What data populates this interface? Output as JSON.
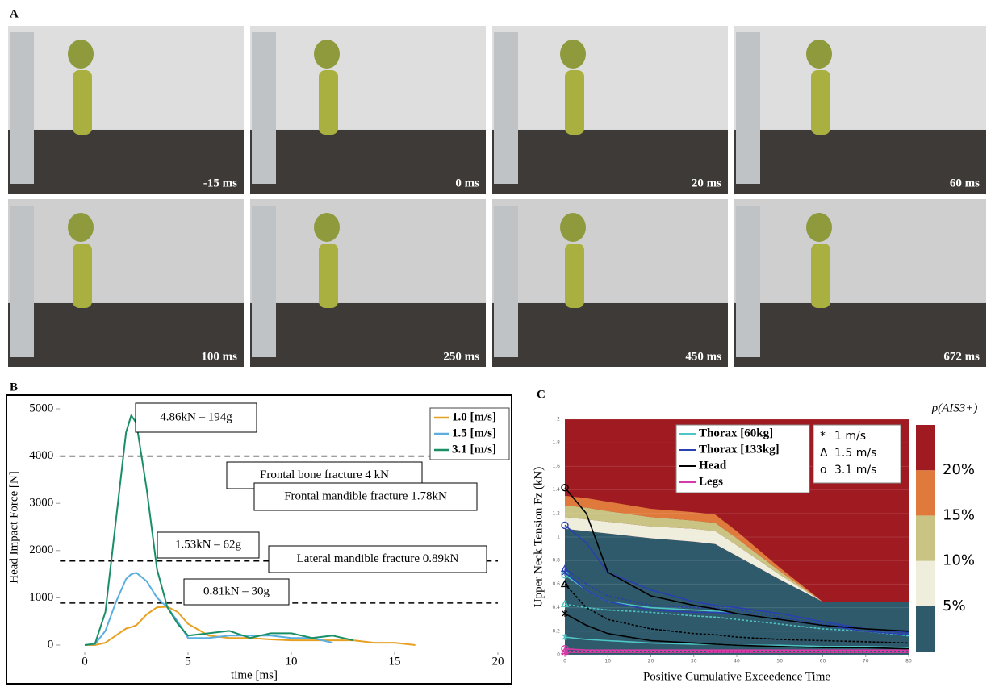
{
  "figure_a": {
    "label": "A",
    "frames": [
      "-15 ms",
      "0 ms",
      "20 ms",
      "60 ms",
      "100 ms",
      "250 ms",
      "450 ms",
      "672 ms"
    ]
  },
  "chart_data": [
    {
      "type": "line",
      "panel_label": "B",
      "xlabel": "time [ms]",
      "ylabel": "Head Impact Force [N]",
      "x": [
        0,
        0.5,
        1,
        1.5,
        2,
        2.25,
        2.5,
        3,
        3.5,
        4,
        4.5,
        5,
        6,
        7,
        8,
        9,
        10,
        11,
        12,
        13,
        14,
        15,
        16
      ],
      "series": [
        {
          "name": "1.0 [m/s]",
          "color": "#e8a020",
          "values": [
            0,
            0,
            50,
            200,
            350,
            380,
            420,
            650,
            800,
            810,
            700,
            450,
            200,
            150,
            150,
            120,
            100,
            100,
            100,
            100,
            50,
            50,
            0
          ]
        },
        {
          "name": "1.5 [m/s]",
          "color": "#5aaee0",
          "values": [
            0,
            20,
            300,
            900,
            1400,
            1500,
            1530,
            1350,
            1000,
            800,
            500,
            150,
            150,
            200,
            200,
            200,
            150,
            150,
            50,
            null,
            null,
            null,
            null
          ]
        },
        {
          "name": "3.1 [m/s]",
          "color": "#1a8f66",
          "values": [
            0,
            30,
            700,
            2600,
            4500,
            4860,
            4700,
            3300,
            1600,
            800,
            450,
            200,
            250,
            300,
            150,
            250,
            250,
            150,
            200,
            100,
            null,
            null,
            null
          ]
        }
      ],
      "thresholds": [
        {
          "value": 4000,
          "label": "Frontal bone fracture 4 kN"
        },
        {
          "value": 1780,
          "label": "Frontal mandible fracture 1.78kN"
        },
        {
          "value": 890,
          "label": "Lateral mandible fracture 0.89kN"
        }
      ],
      "annotations": [
        "4.86kN – 194g",
        "1.53kN – 62g",
        "0.81kN – 30g"
      ],
      "xlim": [
        -1.2,
        20
      ],
      "ylim": [
        0,
        5000
      ],
      "xticks": [
        0,
        5,
        10,
        15,
        20
      ],
      "yticks": [
        0,
        1000,
        2000,
        3000,
        4000,
        5000
      ],
      "legend": "upper right"
    },
    {
      "type": "area",
      "panel_label": "C",
      "xlabel": "Positive Cumulative Exceedence Time",
      "ylabel": "Upper Neck Tension Fz (kN)",
      "colorbar_title": "p(AIS3+)",
      "background_color": "#a01a22",
      "x": [
        0,
        5,
        10,
        20,
        30,
        35,
        40,
        50,
        60,
        70,
        80
      ],
      "bands": [
        {
          "name": "5%",
          "color": "#2e5a6b",
          "values": [
            1.07,
            1.05,
            1.03,
            0.99,
            0.96,
            0.94,
            0.84,
            0.64,
            0.45,
            0.45,
            0.45
          ]
        },
        {
          "name": "10%",
          "color": "#efeddc",
          "values": [
            0.1,
            0.1,
            0.1,
            0.1,
            0.11,
            0.11,
            0.09,
            0.04,
            0,
            0,
            0
          ]
        },
        {
          "name": "15%",
          "color": "#c9c384",
          "values": [
            0.1,
            0.1,
            0.09,
            0.08,
            0.07,
            0.07,
            0.06,
            0.03,
            0,
            0,
            0
          ]
        },
        {
          "name": "20%",
          "color": "#e07a3c",
          "values": [
            0.08,
            0.08,
            0.08,
            0.07,
            0.07,
            0.07,
            0.06,
            0.03,
            0,
            0,
            0
          ]
        }
      ],
      "series": [
        {
          "name": "Thorax [60kg]",
          "color": "#4fc6c6",
          "curves": [
            [
              0.15,
              0.13,
              0.12,
              0.1,
              0.09,
              0.09,
              0.08,
              0.08,
              0.07,
              0.07,
              0.06
            ],
            [
              0.43,
              0.4,
              0.38,
              0.36,
              0.33,
              0.32,
              0.3,
              0.26,
              0.22,
              0.2,
              0.16
            ],
            [
              0.68,
              0.55,
              0.45,
              0.4,
              0.38,
              0.37,
              0.35,
              0.3,
              0.25,
              0.2,
              0.17
            ]
          ]
        },
        {
          "name": "Thorax [133kg]",
          "color": "#2a3fb0",
          "curves": [
            [
              0.7,
              0.55,
              0.45,
              0.38,
              0.36,
              0.36,
              0.35,
              0.3,
              0.25,
              0.2,
              0.17
            ],
            [
              0.73,
              0.6,
              0.5,
              0.42,
              0.4,
              0.4,
              0.38,
              0.32,
              0.26,
              0.22,
              0.18
            ],
            [
              1.1,
              0.95,
              0.7,
              0.55,
              0.45,
              0.42,
              0.4,
              0.35,
              0.28,
              0.22,
              0.19
            ]
          ]
        },
        {
          "name": "Head",
          "color": "#000000",
          "curves": [
            [
              0.35,
              0.25,
              0.18,
              0.12,
              0.1,
              0.09,
              0.08,
              0.07,
              0.06,
              0.06,
              0.05
            ],
            [
              0.6,
              0.4,
              0.3,
              0.22,
              0.18,
              0.17,
              0.15,
              0.13,
              0.12,
              0.11,
              0.1
            ],
            [
              1.42,
              1.2,
              0.7,
              0.5,
              0.42,
              0.39,
              0.35,
              0.3,
              0.25,
              0.22,
              0.2
            ]
          ]
        },
        {
          "name": "Legs",
          "color": "#d63aa6",
          "curves": [
            [
              0.02,
              0.02,
              0.02,
              0.02,
              0.02,
              0.02,
              0.02,
              0.02,
              0.02,
              0.02,
              0.02
            ],
            [
              0.03,
              0.03,
              0.03,
              0.03,
              0.03,
              0.03,
              0.03,
              0.03,
              0.03,
              0.03,
              0.03
            ],
            [
              0.05,
              0.04,
              0.04,
              0.04,
              0.04,
              0.04,
              0.04,
              0.04,
              0.04,
              0.04,
              0.04
            ]
          ]
        }
      ],
      "marker_legend": [
        {
          "symbol": "*",
          "label": "1 m/s"
        },
        {
          "symbol": "Δ",
          "label": "1.5 m/s"
        },
        {
          "symbol": "o",
          "label": "3.1 m/s"
        }
      ],
      "xlim": [
        0,
        80
      ],
      "ylim": [
        0,
        2
      ],
      "xticks": [
        0,
        10,
        20,
        30,
        40,
        50,
        60,
        70,
        80
      ],
      "yticks": [
        0,
        0.2,
        0.4,
        0.6,
        0.8,
        1,
        1.2,
        1.4,
        1.6,
        1.8,
        2
      ]
    }
  ]
}
